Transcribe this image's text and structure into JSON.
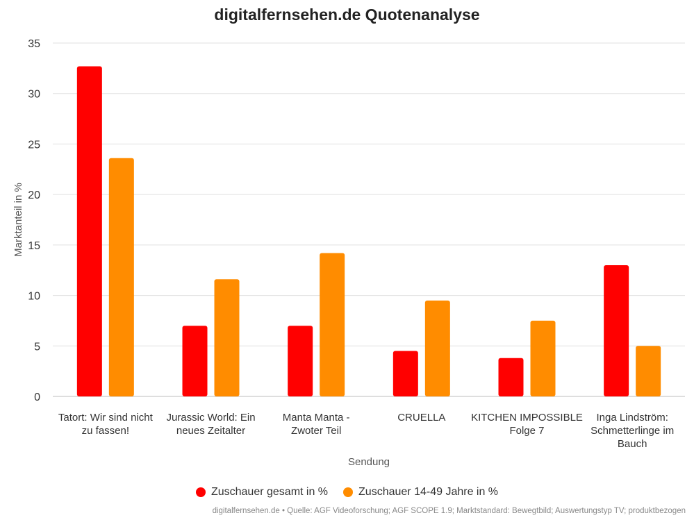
{
  "colors": {
    "series1": "#ff0000",
    "series2": "#ff8c00",
    "grid": "#e0e0e0"
  },
  "source_text": "digitalfernsehen.de • Quelle: AGF Videoforschung; AGF SCOPE 1.9; Marktstandard: Bewegtbild; Auswertungstyp TV; produktbezogen",
  "chart_data": {
    "type": "bar",
    "title": "digitalfernsehen.de Quotenanalyse",
    "xlabel": "Sendung",
    "ylabel": "Marktanteil in %",
    "ylim": [
      0,
      35
    ],
    "yticks": [
      0,
      5,
      10,
      15,
      20,
      25,
      30,
      35
    ],
    "grid": true,
    "legend_position": "bottom",
    "categories": [
      [
        "Tatort: Wir sind nicht",
        "zu fassen!"
      ],
      [
        "Jurassic World: Ein",
        "neues Zeitalter"
      ],
      [
        "Manta Manta -",
        "Zwoter Teil"
      ],
      [
        "CRUELLA"
      ],
      [
        "KITCHEN IMPOSSIBLE",
        "Folge 7"
      ],
      [
        "Inga Lindström:",
        "Schmetterlinge im",
        "Bauch"
      ]
    ],
    "series": [
      {
        "name": "Zuschauer gesamt in %",
        "values": [
          32.7,
          7.0,
          7.0,
          4.5,
          3.8,
          13.0
        ]
      },
      {
        "name": "Zuschauer 14-49 Jahre in %",
        "values": [
          23.6,
          11.6,
          14.2,
          9.5,
          7.5,
          5.0
        ]
      }
    ]
  }
}
